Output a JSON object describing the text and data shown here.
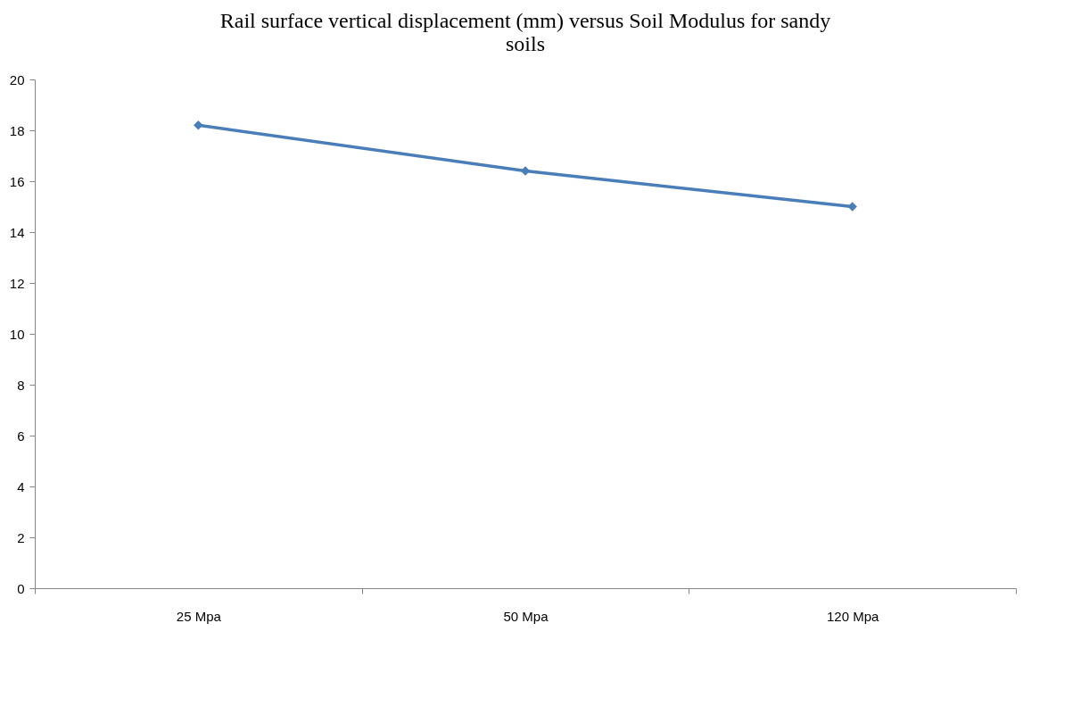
{
  "chart_data": {
    "type": "line",
    "title": "Rail surface vertical displacement (mm) versus  Soil Modulus for sandy soils",
    "categories": [
      "25 Mpa",
      "50 Mpa",
      "120 Mpa"
    ],
    "series": [
      {
        "color": "#4a7ebb",
        "values": [
          18.2,
          16.4,
          15.0
        ]
      }
    ],
    "ylim": [
      0,
      20
    ],
    "yticks": [
      0,
      2,
      4,
      6,
      8,
      10,
      12,
      14,
      16,
      18,
      20
    ],
    "marker": "diamond",
    "line_style": "solid",
    "grid": false
  }
}
